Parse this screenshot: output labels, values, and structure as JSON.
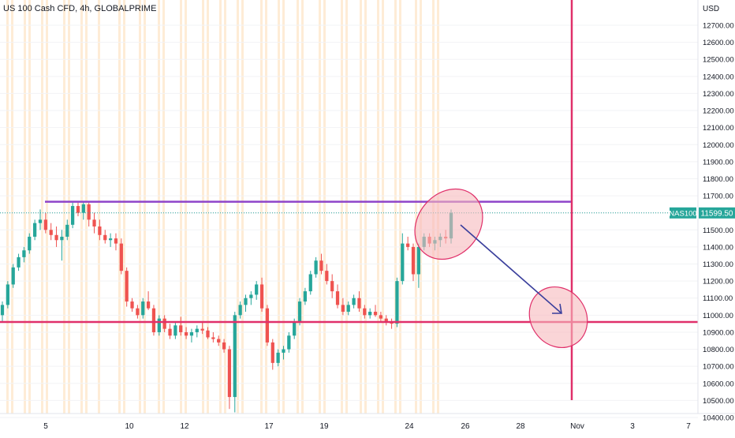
{
  "header": {
    "title": "US 100 Cash CFD, 4h, GLOBALPRIME",
    "currency": "USD"
  },
  "price_tag": {
    "symbol": "NAS100",
    "value": "11599.50"
  },
  "colors": {
    "up": "#26a69a",
    "down": "#ef5350",
    "session_band": "#fde4c4",
    "resistance_line": "#8e44c9",
    "support_line": "#e0306a",
    "vertical_marker": "#e0306a",
    "ellipse_fill": "#f7b9bd",
    "ellipse_stroke": "#e0306a",
    "arrow": "#3a3f9c",
    "last_price": "#26a69a"
  },
  "chart_data": {
    "type": "candlestick",
    "interval": "4h",
    "y_axis": {
      "min": 10400,
      "max": 12800,
      "ticks": [
        "12700.00",
        "12600.00",
        "12500.00",
        "12400.00",
        "12300.00",
        "12200.00",
        "12100.00",
        "12000.00",
        "11900.00",
        "11800.00",
        "11700.00",
        "11600.00",
        "11500.00",
        "11400.00",
        "11300.00",
        "11200.00",
        "11100.00",
        "11000.00",
        "10900.00",
        "10800.00",
        "10700.00",
        "10600.00",
        "10500.00",
        "10400.00"
      ]
    },
    "x_axis": {
      "labels": [
        "5",
        "10",
        "12",
        "17",
        "19",
        "24",
        "26",
        "28",
        "Nov",
        "3",
        "7"
      ]
    },
    "last_price": 11599.5,
    "levels": {
      "resistance": 11665,
      "support": 10960
    },
    "candles": [
      [
        11000,
        11080,
        10960,
        11060
      ],
      [
        11060,
        11200,
        11040,
        11180
      ],
      [
        11180,
        11300,
        11160,
        11280
      ],
      [
        11280,
        11360,
        11260,
        11340
      ],
      [
        11340,
        11400,
        11310,
        11380
      ],
      [
        11380,
        11480,
        11360,
        11460
      ],
      [
        11460,
        11560,
        11440,
        11540
      ],
      [
        11540,
        11620,
        11500,
        11560
      ],
      [
        11560,
        11600,
        11480,
        11500
      ],
      [
        11500,
        11540,
        11440,
        11470
      ],
      [
        11470,
        11520,
        11400,
        11440
      ],
      [
        11440,
        11500,
        11320,
        11460
      ],
      [
        11460,
        11560,
        11440,
        11530
      ],
      [
        11530,
        11660,
        11510,
        11640
      ],
      [
        11640,
        11660,
        11580,
        11600
      ],
      [
        11600,
        11670,
        11560,
        11650
      ],
      [
        11650,
        11660,
        11520,
        11560
      ],
      [
        11560,
        11600,
        11480,
        11520
      ],
      [
        11520,
        11560,
        11440,
        11470
      ],
      [
        11470,
        11500,
        11420,
        11440
      ],
      [
        11440,
        11480,
        11400,
        11450
      ],
      [
        11450,
        11480,
        11380,
        11420
      ],
      [
        11420,
        11450,
        11240,
        11260
      ],
      [
        11260,
        11280,
        11050,
        11080
      ],
      [
        11080,
        11100,
        11020,
        11040
      ],
      [
        11040,
        11060,
        10980,
        11000
      ],
      [
        11000,
        11100,
        10980,
        11080
      ],
      [
        11080,
        11140,
        11030,
        11040
      ],
      [
        11040,
        11060,
        10880,
        10900
      ],
      [
        10900,
        11000,
        10880,
        10980
      ],
      [
        10980,
        11000,
        10900,
        10920
      ],
      [
        10920,
        10950,
        10860,
        10880
      ],
      [
        10880,
        10960,
        10860,
        10940
      ],
      [
        10940,
        10990,
        10880,
        10900
      ],
      [
        10900,
        10930,
        10860,
        10880
      ],
      [
        10880,
        10920,
        10840,
        10900
      ],
      [
        10900,
        10940,
        10870,
        10920
      ],
      [
        10920,
        10960,
        10890,
        10910
      ],
      [
        10910,
        10930,
        10860,
        10870
      ],
      [
        10870,
        10900,
        10840,
        10860
      ],
      [
        10860,
        10880,
        10820,
        10840
      ],
      [
        10840,
        10860,
        10780,
        10800
      ],
      [
        10800,
        10820,
        10450,
        10520
      ],
      [
        10520,
        11020,
        10430,
        11000
      ],
      [
        11000,
        11080,
        10980,
        11060
      ],
      [
        11060,
        11120,
        11020,
        11100
      ],
      [
        11100,
        11140,
        11060,
        11120
      ],
      [
        11120,
        11200,
        11090,
        11180
      ],
      [
        11180,
        11220,
        11020,
        11040
      ],
      [
        11040,
        11060,
        10820,
        10840
      ],
      [
        10840,
        10860,
        10680,
        10720
      ],
      [
        10720,
        10800,
        10700,
        10780
      ],
      [
        10780,
        10820,
        10740,
        10800
      ],
      [
        10800,
        10900,
        10780,
        10880
      ],
      [
        10880,
        10980,
        10860,
        10960
      ],
      [
        10960,
        11100,
        10940,
        11080
      ],
      [
        11080,
        11160,
        11060,
        11140
      ],
      [
        11140,
        11260,
        11120,
        11240
      ],
      [
        11240,
        11340,
        11220,
        11320
      ],
      [
        11320,
        11360,
        11240,
        11260
      ],
      [
        11260,
        11300,
        11180,
        11200
      ],
      [
        11200,
        11240,
        11100,
        11140
      ],
      [
        11140,
        11180,
        11040,
        11060
      ],
      [
        11060,
        11100,
        11000,
        11020
      ],
      [
        11020,
        11080,
        11000,
        11060
      ],
      [
        11060,
        11120,
        11040,
        11100
      ],
      [
        11100,
        11140,
        11020,
        11040
      ],
      [
        11040,
        11060,
        10980,
        11000
      ],
      [
        11000,
        11040,
        10980,
        11020
      ],
      [
        11020,
        11060,
        10990,
        11000
      ],
      [
        11000,
        11020,
        10960,
        10980
      ],
      [
        10980,
        11000,
        10940,
        10960
      ],
      [
        10960,
        10980,
        10920,
        10950
      ],
      [
        10950,
        11220,
        10930,
        11200
      ],
      [
        11200,
        11480,
        11180,
        11420
      ],
      [
        11420,
        11460,
        11380,
        11400
      ],
      [
        11400,
        11420,
        11200,
        11240
      ],
      [
        11240,
        11420,
        11160,
        11400
      ],
      [
        11400,
        11480,
        11380,
        11460
      ],
      [
        11460,
        11480,
        11400,
        11420
      ],
      [
        11420,
        11460,
        11380,
        11440
      ],
      [
        11440,
        11480,
        11400,
        11460
      ],
      [
        11460,
        11500,
        11420,
        11450
      ],
      [
        11450,
        11620,
        11420,
        11600
      ]
    ]
  }
}
